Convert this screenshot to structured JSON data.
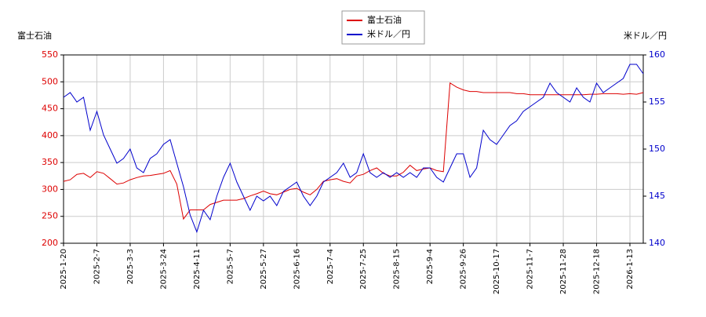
{
  "chart_data": {
    "type": "line",
    "ylabel": "富士石油",
    "y2label": "米ドル／円",
    "categories": [
      "2025-1-20",
      null,
      null,
      null,
      null,
      "2025-2-7",
      null,
      null,
      null,
      null,
      "2025-3-3",
      null,
      null,
      null,
      null,
      "2025-3-24",
      null,
      null,
      null,
      null,
      "2025-4-11",
      null,
      null,
      null,
      null,
      "2025-5-7",
      null,
      null,
      null,
      null,
      "2025-5-27",
      null,
      null,
      null,
      null,
      "2025-6-16",
      null,
      null,
      null,
      null,
      "2025-7-4",
      null,
      null,
      null,
      null,
      "2025-7-25",
      null,
      null,
      null,
      null,
      "2025-8-15",
      null,
      null,
      null,
      null,
      "2025-9-4",
      null,
      null,
      null,
      null,
      "2025-9-26",
      null,
      null,
      null,
      null,
      "2025-10-17",
      null,
      null,
      null,
      null,
      "2025-11-7",
      null,
      null,
      null,
      null,
      "2025-11-28",
      null,
      null,
      null,
      null,
      "2025-12-18",
      null,
      null,
      null,
      null,
      "2026-1-13",
      null,
      null
    ],
    "series": [
      {
        "name": "富士石油",
        "color": "#dd0000",
        "axis": "y",
        "values": [
          315,
          318,
          328,
          330,
          322,
          333,
          330,
          320,
          310,
          312,
          318,
          322,
          325,
          326,
          328,
          330,
          335,
          310,
          245,
          262,
          262,
          262,
          272,
          276,
          280,
          280,
          280,
          283,
          288,
          292,
          297,
          292,
          290,
          295,
          300,
          302,
          295,
          290,
          300,
          315,
          318,
          320,
          315,
          312,
          325,
          328,
          335,
          340,
          330,
          325,
          325,
          332,
          345,
          335,
          338,
          340,
          335,
          333,
          498,
          490,
          485,
          482,
          482,
          480,
          480,
          480,
          480,
          480,
          478,
          478,
          476,
          476,
          476,
          476,
          476,
          476,
          476,
          476,
          476,
          477,
          477,
          478,
          478,
          478,
          477,
          478,
          477,
          480
        ]
      },
      {
        "name": "米ドル／円",
        "color": "#0000cc",
        "axis": "y2",
        "values": [
          155.5,
          156,
          155,
          155.5,
          152,
          154,
          151.5,
          150,
          148.5,
          149,
          150,
          148,
          147.5,
          149,
          149.5,
          150.5,
          151,
          148.5,
          146,
          143,
          141.2,
          143.5,
          142.5,
          145,
          147,
          148.5,
          146.5,
          145,
          143.5,
          145,
          144.5,
          145,
          144,
          145.5,
          146,
          146.5,
          145,
          144,
          145,
          146.5,
          147,
          147.5,
          148.5,
          147,
          147.5,
          149.5,
          147.5,
          147,
          147.5,
          147,
          147.5,
          147,
          147.5,
          147,
          148,
          148,
          147,
          146.5,
          148,
          149.5,
          149.5,
          147,
          148,
          152,
          151,
          150.5,
          151.5,
          152.5,
          153,
          154,
          154.5,
          155,
          155.5,
          157,
          156,
          155.5,
          155,
          156.5,
          155.5,
          155,
          157,
          156,
          156.5,
          157,
          157.5,
          159,
          159,
          158
        ]
      }
    ],
    "ylim": [
      200,
      550
    ],
    "yticks": [
      200,
      250,
      300,
      350,
      400,
      450,
      500,
      550
    ],
    "y2lim": [
      140,
      160
    ],
    "y2ticks": [
      140,
      145,
      150,
      155,
      160
    ],
    "grid": true,
    "legend": "top"
  }
}
